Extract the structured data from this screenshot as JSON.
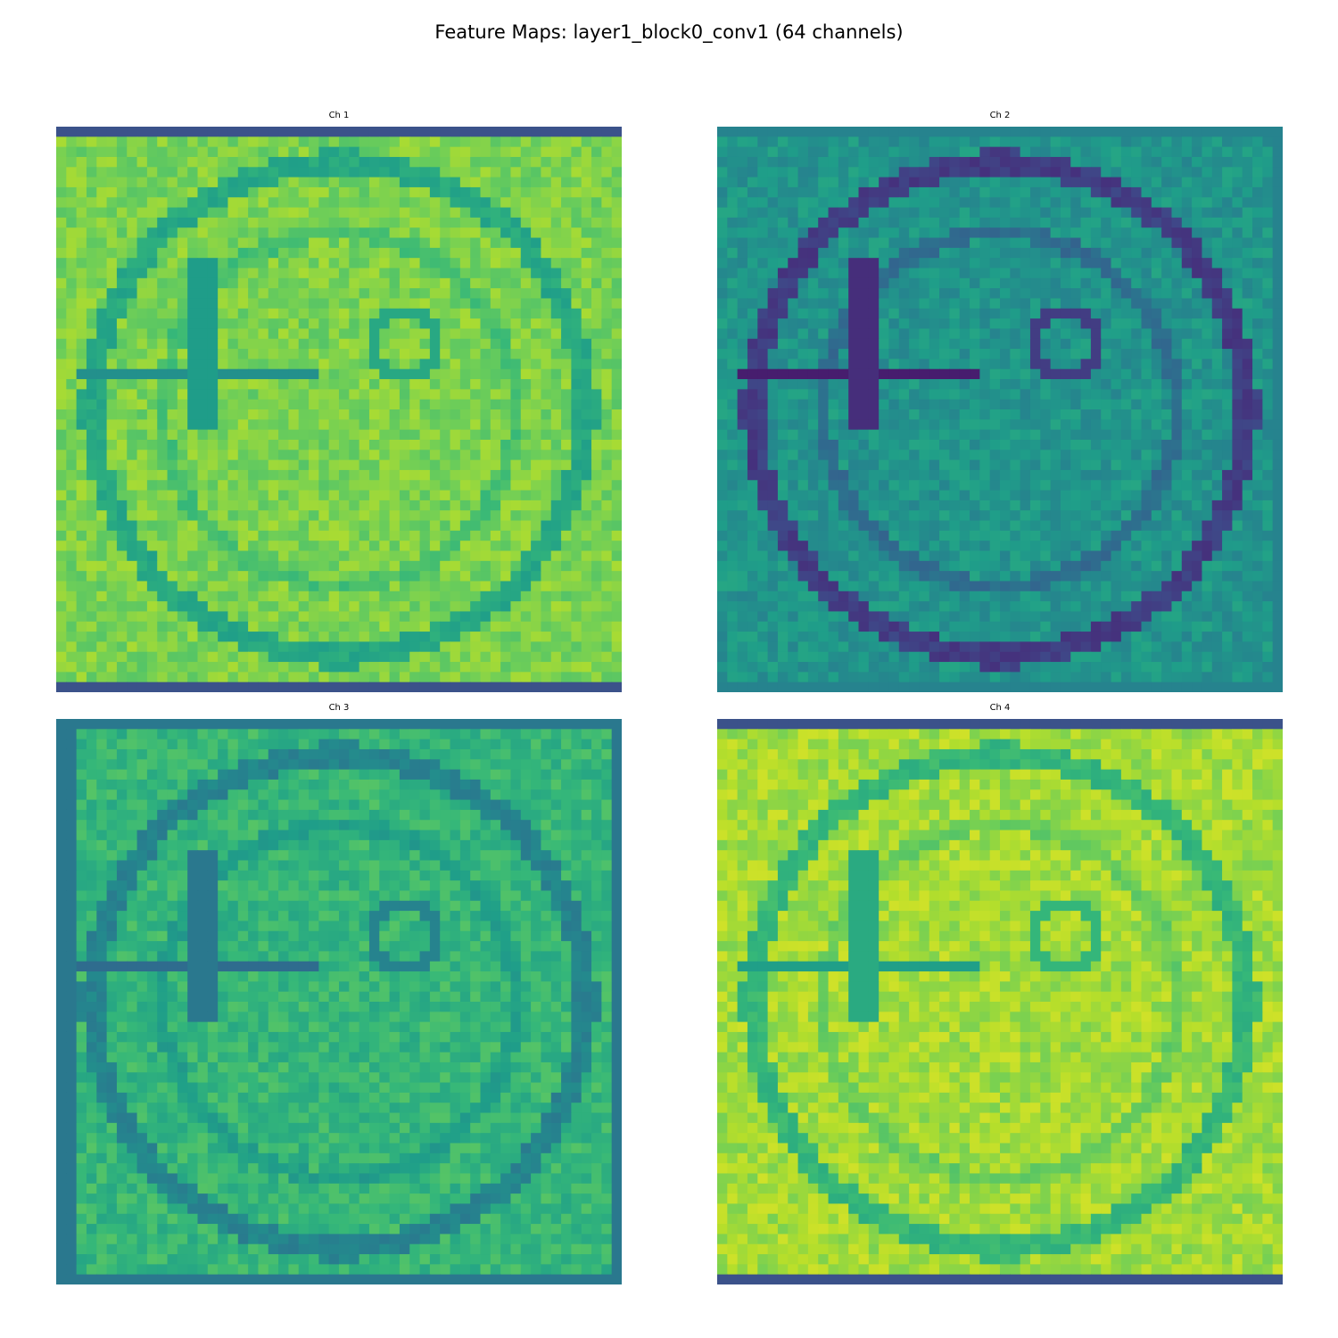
{
  "figure": {
    "title": "Feature Maps: layer1_block0_conv1 (64 channels)"
  },
  "chart_data": [
    {
      "type": "heatmap",
      "title": "Ch 1",
      "colormap": "viridis",
      "grid_size": [
        56,
        56
      ],
      "base_level": 0.8,
      "ring_level": 0.6,
      "edge_level": 0.25,
      "variant": 1
    },
    {
      "type": "heatmap",
      "title": "Ch 2",
      "colormap": "viridis",
      "grid_size": [
        56,
        56
      ],
      "base_level": 0.52,
      "ring_level": 0.18,
      "edge_level": 0.45,
      "variant": 2
    },
    {
      "type": "heatmap",
      "title": "Ch 3",
      "colormap": "viridis",
      "grid_size": [
        56,
        56
      ],
      "base_level": 0.66,
      "ring_level": 0.45,
      "edge_level": 0.4,
      "variant": 3
    },
    {
      "type": "heatmap",
      "title": "Ch 4",
      "colormap": "viridis",
      "grid_size": [
        56,
        56
      ],
      "base_level": 0.86,
      "ring_level": 0.66,
      "edge_level": 0.25,
      "variant": 4
    }
  ]
}
